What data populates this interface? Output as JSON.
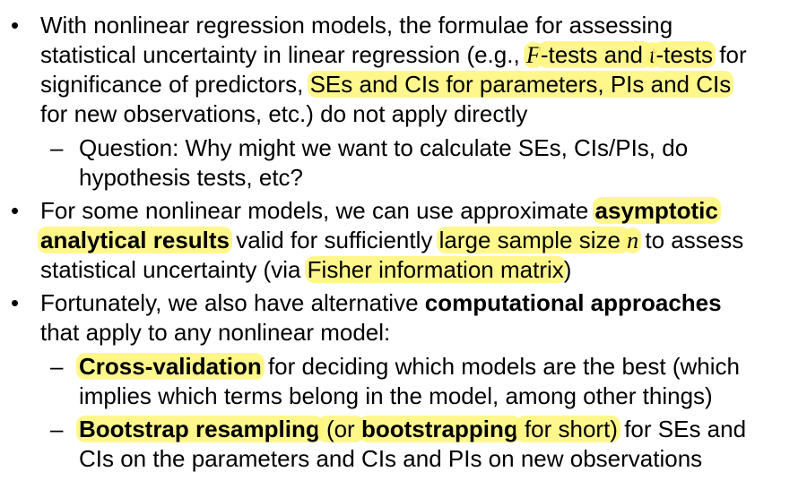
{
  "bullets": [
    {
      "marker": "•",
      "lines": [
        [
          {
            "t": "With nonlinear regression models, the formulae for assessing"
          }
        ],
        [
          {
            "t": "statistical uncertainty in linear regression (e.g., "
          },
          {
            "t": "F",
            "math": true,
            "hl": true
          },
          {
            "t": "-tests and ",
            "hl": true
          },
          {
            "t": "t",
            "math": true,
            "hl": true
          },
          {
            "t": "-tests",
            "hl": true
          },
          {
            "t": " for"
          }
        ],
        [
          {
            "t": "significance of predictors, "
          },
          {
            "t": "SEs and CIs for parameters, PIs and CIs",
            "hl": true
          }
        ],
        [
          {
            "t": "for new observations, etc.) do not apply directly"
          }
        ]
      ]
    },
    {
      "marker": "–",
      "lines": [
        [
          {
            "t": "Question: Why might we want to calculate SEs, CIs/PIs, do"
          }
        ],
        [
          {
            "t": "hypothesis tests, etc?"
          }
        ]
      ]
    },
    {
      "marker": "•",
      "lines": [
        [
          {
            "t": "For some nonlinear models, we can use approximate "
          },
          {
            "t": "asymptotic",
            "b": true,
            "hl": true
          }
        ],
        [
          {
            "t": "analytical results",
            "b": true,
            "hl": true
          },
          {
            "t": " valid for sufficiently "
          },
          {
            "t": "large sample size ",
            "hl": true
          },
          {
            "t": "n",
            "math": true,
            "hl": true
          },
          {
            "t": " to assess"
          }
        ],
        [
          {
            "t": "statistical uncertainty (via "
          },
          {
            "t": "Fisher information matrix",
            "hl": true
          },
          {
            "t": ")"
          }
        ]
      ]
    },
    {
      "marker": "•",
      "lines": [
        [
          {
            "t": "Fortunately, we also have alternative "
          },
          {
            "t": "computational approaches",
            "b": true
          }
        ],
        [
          {
            "t": "that apply to any nonlinear model:"
          }
        ]
      ]
    },
    {
      "marker": "–",
      "lines": [
        [
          {
            "t": "Cross-validation",
            "b": true,
            "hl": true
          },
          {
            "t": " for deciding which models are the best (which"
          }
        ],
        [
          {
            "t": "implies which terms belong in the model, among other things)"
          }
        ]
      ]
    },
    {
      "marker": "–",
      "lines": [
        [
          {
            "t": "Bootstrap resampling",
            "b": true,
            "hl": true
          },
          {
            "t": " (or ",
            "hl": true
          },
          {
            "t": "bootstrapping",
            "b": true,
            "hl": true
          },
          {
            "t": " for short)",
            "hl": true
          },
          {
            "t": " for SEs and"
          }
        ],
        [
          {
            "t": "CIs on the parameters and CIs and PIs on new observations"
          }
        ]
      ]
    }
  ]
}
